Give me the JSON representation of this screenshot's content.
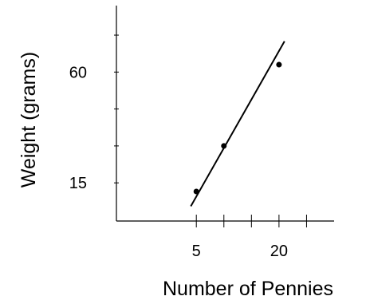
{
  "chart_data": {
    "type": "scatter",
    "title": "",
    "xlabel": "Number of Pennies",
    "ylabel": "Weight (grams)",
    "xlim": [
      -9.5,
      30
    ],
    "ylim": [
      -0.5,
      87
    ],
    "x_ticks": [
      5,
      10,
      15,
      20,
      25
    ],
    "x_tick_labels": [
      "5",
      "",
      "",
      "20",
      ""
    ],
    "y_ticks": [
      15,
      30,
      45,
      60,
      75
    ],
    "y_tick_labels": [
      "15",
      "",
      "",
      "60",
      ""
    ],
    "grid": false,
    "series": [
      {
        "points": [
          {
            "x": 5,
            "y": 11.5
          },
          {
            "x": 10,
            "y": 30
          },
          {
            "x": 20,
            "y": 63
          }
        ]
      }
    ],
    "trendline": {
      "x": [
        4,
        21
      ],
      "y": [
        5.5,
        72.5
      ]
    }
  }
}
